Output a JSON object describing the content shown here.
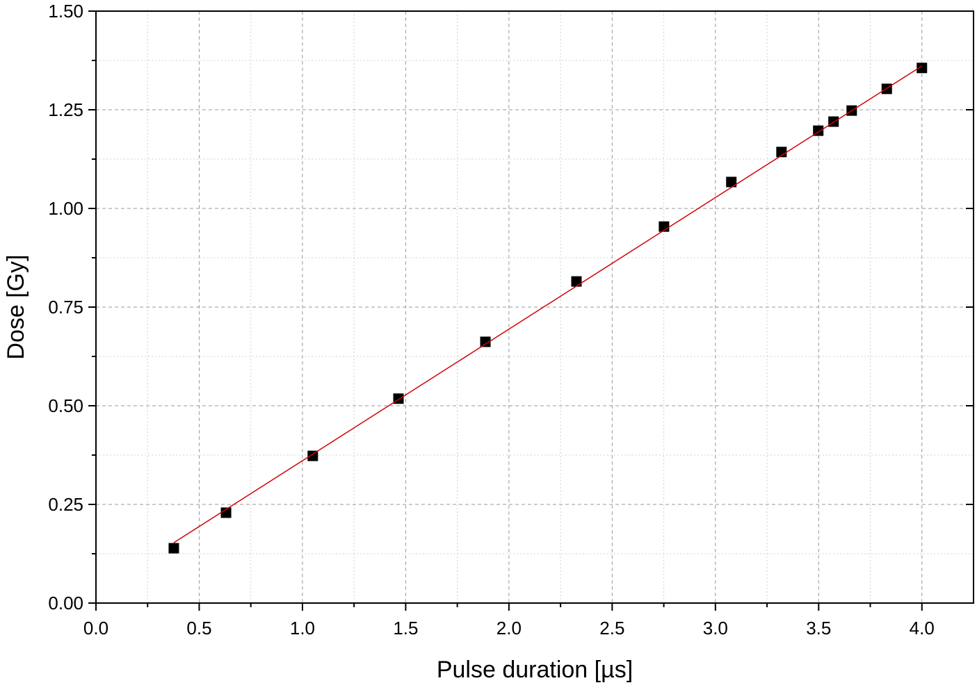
{
  "chart_data": {
    "type": "scatter",
    "x_label": "Pulse duration [µs]",
    "y_label": "Dose [Gy]",
    "series": [
      {
        "type": "scatter",
        "color": "#000000",
        "x": [
          0.377,
          0.63,
          1.05,
          1.465,
          1.886,
          2.327,
          2.751,
          3.077,
          3.32,
          3.498,
          3.572,
          3.66,
          3.83,
          4.0
        ],
        "values": [
          0.139,
          0.229,
          0.373,
          0.518,
          0.662,
          0.815,
          0.954,
          1.067,
          1.143,
          1.197,
          1.22,
          1.248,
          1.303,
          1.356
        ]
      },
      {
        "type": "line",
        "color": "#d00000",
        "x": [
          0.377,
          4.0
        ],
        "values": [
          0.153,
          1.361
        ]
      }
    ],
    "xlim": [
      0,
      4.25
    ],
    "ylim": [
      0,
      1.5
    ],
    "xticks": [
      {
        "value": 0,
        "label": "0.0"
      },
      0.5,
      {
        "value": 1,
        "label": "1.0"
      },
      1.5,
      {
        "value": 2,
        "label": "2.0"
      },
      2.5,
      {
        "value": 3,
        "label": "3.0"
      },
      3.5,
      {
        "value": 4,
        "label": "4.0"
      }
    ],
    "yticks": [
      {
        "value": 0,
        "label": "0.00"
      },
      0.25,
      {
        "value": 0.5,
        "label": "0.50"
      },
      0.75,
      {
        "value": 1,
        "label": "1.00"
      },
      1.25,
      {
        "value": 1.5,
        "label": "1.50"
      }
    ],
    "xminorticks": [
      0.25,
      0.75,
      1.25,
      1.75,
      2.25,
      2.75,
      3.25,
      3.75
    ],
    "yminorticks": [
      0.125,
      0.375,
      0.625,
      0.875,
      1.125,
      1.375
    ],
    "grid": true
  }
}
